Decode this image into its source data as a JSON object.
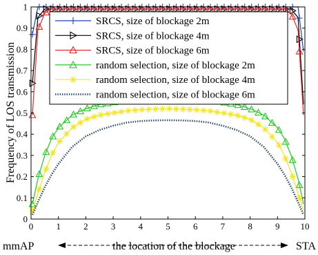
{
  "chart_data": {
    "type": "line",
    "title": "",
    "xlabel": "the location of the blockage",
    "ylabel": "Frequency of LOS transmission",
    "xlim": [
      0,
      10
    ],
    "ylim": [
      0,
      1
    ],
    "x_ticks": [
      "0",
      "1",
      "2",
      "3",
      "4",
      "5",
      "6",
      "7",
      "8",
      "9",
      "10"
    ],
    "y_ticks": [
      "0",
      "0.1",
      "0.2",
      "0.3",
      "0.4",
      "0.5",
      "0.6",
      "0.7",
      "0.8",
      "0.9",
      "1"
    ],
    "grid": false,
    "legend_position": "top-center",
    "left_end_label": "mmAP",
    "right_end_label": "STA",
    "series": [
      {
        "name": "SRCS, size of blockage 2m",
        "color": "#1f3fbf",
        "marker": "plus",
        "dash": "solid",
        "x": [
          0.05,
          0.25,
          9.75,
          9.95
        ],
        "y": [
          0.87,
          1.0,
          1.0,
          0.79
        ]
      },
      {
        "name": "SRCS, size of blockage 4m",
        "color": "#000000",
        "marker": "triangle-right",
        "dash": "solid",
        "x": [
          0.05,
          0.25,
          0.5,
          9.5,
          9.75,
          9.95
        ],
        "y": [
          0.64,
          0.95,
          0.99,
          0.99,
          0.95,
          0.54
        ]
      },
      {
        "name": "SRCS, size of blockage 6m",
        "color": "#e8262b",
        "marker": "triangle-up",
        "dash": "solid",
        "x": [
          0.05,
          0.25,
          0.5,
          0.75,
          9.25,
          9.5,
          9.75,
          9.95
        ],
        "y": [
          0.49,
          0.89,
          0.97,
          0.99,
          0.99,
          0.97,
          0.89,
          0.49
        ]
      },
      {
        "name": "random selection, size of blockage 2m",
        "color": "#22c922",
        "marker": "triangle-up",
        "dash": "solid",
        "x": [
          0.05,
          0.25,
          0.5,
          0.75,
          1.0,
          1.5,
          2.0,
          2.5,
          3.0,
          3.5,
          4.0,
          4.5,
          5.0,
          5.5,
          6.0,
          6.5,
          7.0,
          7.5,
          8.0,
          8.5,
          9.0,
          9.25,
          9.5,
          9.75,
          9.95
        ],
        "y": [
          0.07,
          0.19,
          0.3,
          0.38,
          0.43,
          0.49,
          0.52,
          0.54,
          0.55,
          0.56,
          0.565,
          0.567,
          0.568,
          0.567,
          0.565,
          0.56,
          0.55,
          0.54,
          0.52,
          0.49,
          0.43,
          0.38,
          0.3,
          0.19,
          0.07
        ]
      },
      {
        "name": "random selection, size of blockage 4m",
        "color": "#f2e51b",
        "marker": "asterisk",
        "dash": "solid",
        "x": [
          0.05,
          0.25,
          0.5,
          0.75,
          1.0,
          1.5,
          2.0,
          2.5,
          3.0,
          3.5,
          4.0,
          4.5,
          5.0,
          5.5,
          6.0,
          6.5,
          7.0,
          7.5,
          8.0,
          8.5,
          9.0,
          9.25,
          9.5,
          9.75,
          9.95
        ],
        "y": [
          0.04,
          0.12,
          0.22,
          0.3,
          0.36,
          0.43,
          0.47,
          0.49,
          0.5,
          0.51,
          0.515,
          0.518,
          0.52,
          0.518,
          0.515,
          0.51,
          0.5,
          0.49,
          0.47,
          0.43,
          0.36,
          0.3,
          0.22,
          0.12,
          0.04
        ]
      },
      {
        "name": "random selection, size of blockage 6m",
        "color": "#2b4d6b",
        "marker": "none",
        "dash": "dotted",
        "x": [
          0.05,
          0.25,
          0.5,
          0.75,
          1.0,
          1.5,
          2.0,
          2.5,
          3.0,
          3.5,
          4.0,
          4.5,
          5.0,
          5.5,
          6.0,
          6.5,
          7.0,
          7.5,
          8.0,
          8.5,
          9.0,
          9.25,
          9.5,
          9.75,
          9.95
        ],
        "y": [
          0.02,
          0.08,
          0.15,
          0.21,
          0.26,
          0.34,
          0.39,
          0.42,
          0.44,
          0.455,
          0.462,
          0.465,
          0.466,
          0.465,
          0.462,
          0.455,
          0.44,
          0.42,
          0.39,
          0.34,
          0.26,
          0.21,
          0.15,
          0.08,
          0.02
        ]
      }
    ]
  }
}
